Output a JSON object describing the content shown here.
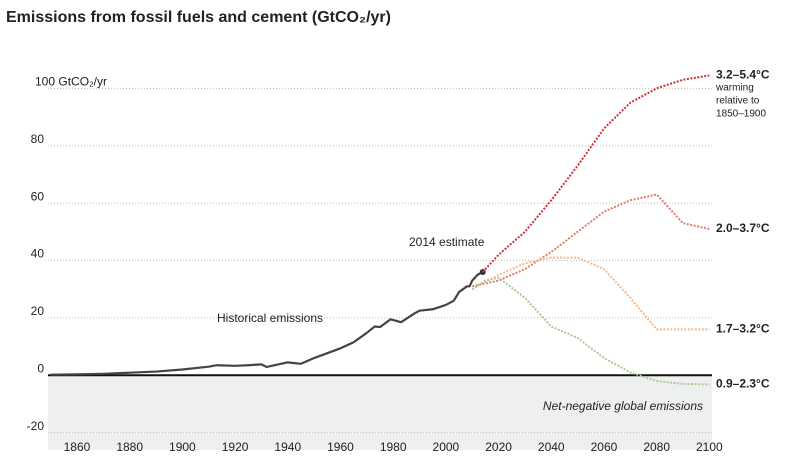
{
  "chart_data": {
    "type": "line",
    "title": "Emissions from fossil fuels and cement (GtCO₂/yr)",
    "xlim": [
      1849,
      2101
    ],
    "ylim": [
      -25,
      105
    ],
    "xticks": [
      1860,
      1880,
      1900,
      1920,
      1940,
      1960,
      1980,
      2000,
      2020,
      2040,
      2060,
      2080,
      2100
    ],
    "yticks": [
      -20,
      0,
      20,
      40,
      60,
      80,
      {
        "value": 100,
        "label": "100 GtCO₂/yr"
      }
    ],
    "grid": true,
    "series": [
      {
        "name": "Historical emissions",
        "color": "#444444",
        "style": "solid",
        "x": [
          1850,
          1860,
          1870,
          1880,
          1890,
          1900,
          1910,
          1913,
          1920,
          1925,
          1930,
          1932,
          1940,
          1945,
          1950,
          1955,
          1960,
          1965,
          1970,
          1973,
          1975,
          1979,
          1983,
          1988,
          1990,
          1995,
          2000,
          2003,
          2005,
          2008,
          2009,
          2010,
          2012,
          2014
        ],
        "values": [
          0.2,
          0.3,
          0.5,
          0.9,
          1.3,
          2.0,
          3.0,
          3.5,
          3.3,
          3.5,
          3.8,
          2.9,
          4.5,
          4.0,
          6.0,
          7.7,
          9.4,
          11.5,
          14.8,
          17.0,
          16.8,
          19.5,
          18.5,
          21.5,
          22.5,
          23.0,
          24.5,
          26.0,
          29.0,
          31.0,
          31.0,
          33.0,
          35.0,
          36.0
        ]
      },
      {
        "name": "3.2–5.4°C",
        "color": "#c8323a",
        "style": "dotted",
        "x": [
          2014,
          2020,
          2030,
          2040,
          2050,
          2060,
          2070,
          2080,
          2090,
          2100
        ],
        "values": [
          36,
          42,
          50,
          61,
          73,
          86,
          95,
          100,
          103,
          104.5
        ]
      },
      {
        "name": "2.0–3.7°C",
        "color": "#e07c6a",
        "style": "dotted",
        "x": [
          2010,
          2020,
          2030,
          2040,
          2050,
          2060,
          2070,
          2080,
          2090,
          2100
        ],
        "values": [
          31,
          33,
          37,
          43,
          50,
          57,
          61,
          63,
          53,
          51
        ]
      },
      {
        "name": "1.7–3.2°C",
        "color": "#f5b98a",
        "style": "dotted",
        "x": [
          2010,
          2020,
          2030,
          2040,
          2050,
          2060,
          2070,
          2080,
          2090,
          2100
        ],
        "values": [
          30,
          35,
          39,
          41,
          41,
          37,
          27,
          16,
          16,
          16
        ]
      },
      {
        "name": "0.9–2.3°C",
        "color": "#aec79a",
        "style": "dotted",
        "x": [
          2010,
          2015,
          2020,
          2030,
          2040,
          2050,
          2060,
          2070,
          2080,
          2090,
          2100
        ],
        "values": [
          30,
          33,
          34,
          27,
          17,
          13,
          6,
          1,
          -2,
          -3,
          -3.2
        ]
      }
    ],
    "warming_note": [
      "warming",
      "relative to",
      "1850–1900"
    ],
    "annotations": [
      "2014 estimate",
      "Net-negative global emissions"
    ]
  }
}
